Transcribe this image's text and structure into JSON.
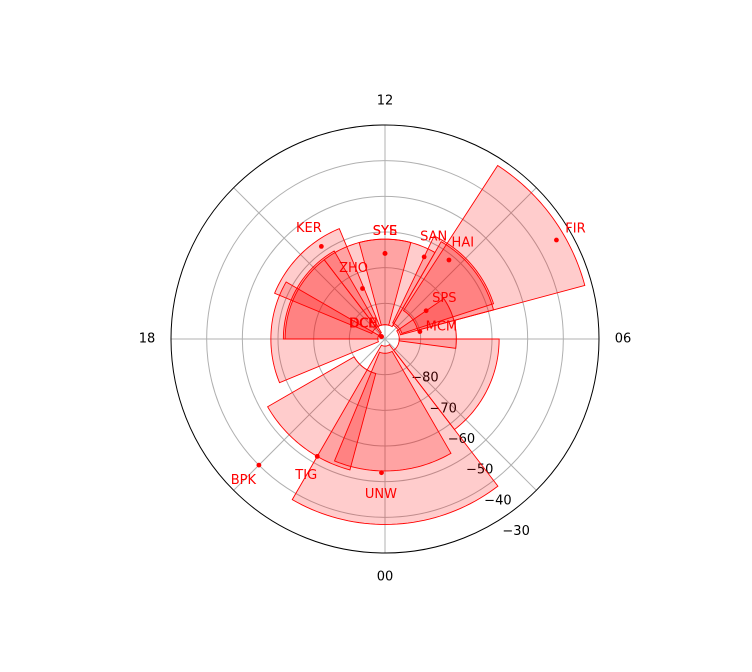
{
  "chart_data": {
    "type": "polar",
    "title": "",
    "angular_axis": {
      "unit": "hour",
      "direction": "counter-clockwise",
      "zero_location": "bottom",
      "labels": [
        {
          "hour": 0,
          "text": "00"
        },
        {
          "hour": 6,
          "text": "06"
        },
        {
          "hour": 12,
          "text": "12"
        },
        {
          "hour": 18,
          "text": "18"
        }
      ],
      "grid_every_hours": 3
    },
    "radial_axis": {
      "rlim": [
        -90,
        -30
      ],
      "grid_rings": [
        -80,
        -70,
        -60,
        -50,
        -40
      ],
      "tick_labels": [
        "−80",
        "−70",
        "−60",
        "−50",
        "−40",
        "−30"
      ],
      "tick_values": [
        -80,
        -70,
        -60,
        -50,
        -40,
        -30
      ]
    },
    "style": {
      "fill_color": "#ff0000",
      "fill_opacity": 0.2,
      "edge_color": "#ff0000",
      "label_color": "#ff0000",
      "grid_color": "#b0b0b0"
    },
    "stations": [
      {
        "code": "FIR",
        "mlt": 8.0,
        "mlat": -34.5,
        "fov_start": 7.0,
        "fov_end": 9.8,
        "r_min": -80.5,
        "r_max": -32.0
      },
      {
        "code": "SAN",
        "mlt": 10.3,
        "mlat": -64.5,
        "fov_start": 7.2,
        "fov_end": 10.3,
        "r_min": -85.0,
        "r_max": -58.0
      },
      {
        "code": "HAI",
        "mlt": 9.4,
        "mlat": -61.5,
        "fov_start": 7.0,
        "fov_end": 10.0,
        "r_min": -85.5,
        "r_max": -58.5
      },
      {
        "code": "SPS",
        "mlt": 8.3,
        "mlat": -76.0,
        "fov_start": 5.5,
        "fov_end": 8.3,
        "r_min": -86.0,
        "r_max": -70.0
      },
      {
        "code": "SYS",
        "mlt": 12.0,
        "mlat": -66.0,
        "fov_start": 10.0,
        "fov_end": 13.0,
        "r_min": -86.0,
        "r_max": -62.0
      },
      {
        "code": "SYE",
        "mlt": 12.0,
        "mlat": -66.0,
        "fov_start": 11.0,
        "fov_end": 14.5,
        "r_min": -86.0,
        "r_max": -62.0
      },
      {
        "code": "KER",
        "mlt": 14.3,
        "mlat": -58.5,
        "fov_start": 13.5,
        "fov_end": 16.5,
        "r_min": -86.0,
        "r_max": -56.5
      },
      {
        "code": "ZHO",
        "mlt": 13.6,
        "mlat": -74.5,
        "fov_start": 14.0,
        "fov_end": 18.0,
        "r_min": -88.0,
        "r_max": -61.5
      },
      {
        "code": "DCE",
        "mlt": 15.7,
        "mlat": -88.8,
        "fov_start": 14.5,
        "fov_end": 18.0,
        "r_min": -88.0,
        "r_max": -62.0
      },
      {
        "code": "DCN",
        "mlt": 15.7,
        "mlat": -88.8,
        "fov_start": 16.0,
        "fov_end": 19.5,
        "r_min": -88.0,
        "r_max": -58.0
      },
      {
        "code": "MCM",
        "mlt": 6.8,
        "mlat": -80.0,
        "fov_start": 2.5,
        "fov_end": 6.0,
        "r_min": -86.0,
        "r_max": -58.0
      },
      {
        "code": "BPK",
        "mlt": 21.0,
        "mlat": -40.0,
        "fov_start": 22.0,
        "fov_end": 2.5,
        "r_min": -88.0,
        "r_max": -38.0
      },
      {
        "code": "TIG",
        "mlt": 22.0,
        "mlat": -52.0,
        "fov_start": 20.0,
        "fov_end": 23.0,
        "r_min": -80.0,
        "r_max": -52.0
      },
      {
        "code": "UNW",
        "mlt": 23.9,
        "mlat": -52.5,
        "fov_start": 22.5,
        "fov_end": 2.0,
        "r_min": -86.0,
        "r_max": -53.0
      }
    ]
  }
}
